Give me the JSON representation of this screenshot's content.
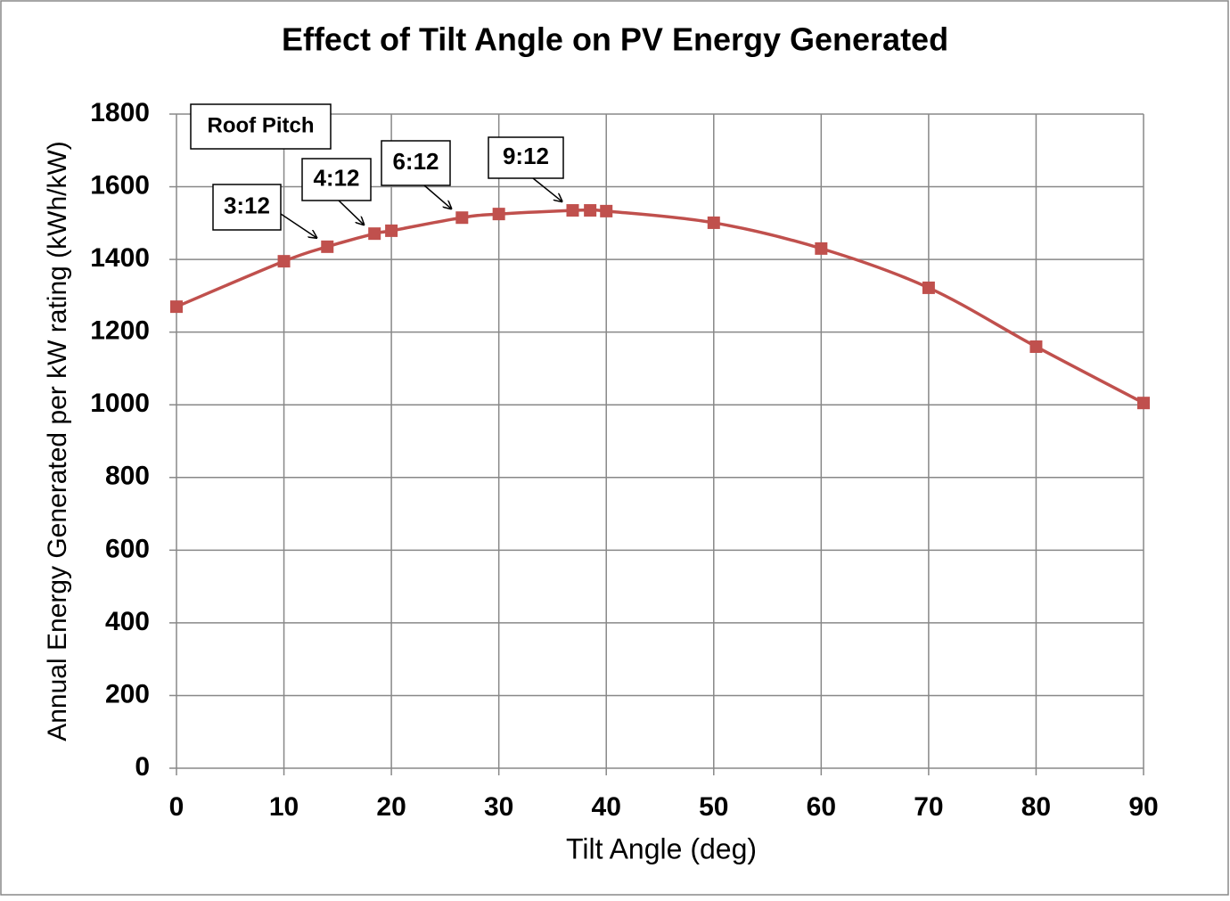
{
  "chart_data": {
    "type": "line",
    "title": "Effect of Tilt Angle on PV Energy Generated",
    "x_label": "Tilt Angle (deg)",
    "y_label": "Annual Energy Generated per kW rating (kWh/kW)",
    "x": [
      0,
      10,
      14.04,
      18.43,
      20,
      26.57,
      30,
      36.87,
      38.5,
      40,
      50,
      60,
      70,
      80,
      90
    ],
    "series": [
      {
        "color": "#c0504d",
        "values": [
          1270,
          1395,
          1435,
          1471,
          1479,
          1515,
          1525,
          1535,
          1535,
          1533,
          1501,
          1430,
          1322,
          1160,
          1005
        ]
      }
    ],
    "xlim": [
      0,
      90
    ],
    "xticks": [
      0,
      10,
      20,
      30,
      40,
      50,
      60,
      70,
      80,
      90
    ],
    "ylim": [
      0,
      1800
    ],
    "yticks": [
      0,
      200,
      400,
      600,
      800,
      1000,
      1200,
      1400,
      1600,
      1800
    ],
    "grid": true,
    "annotations": [
      "Roof Pitch",
      "3:12",
      "4:12",
      "6:12",
      "9:12"
    ]
  }
}
